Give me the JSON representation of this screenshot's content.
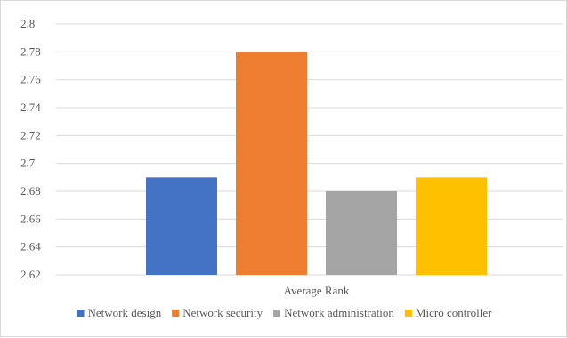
{
  "chart_data": {
    "type": "bar",
    "categories": [
      "Average Rank"
    ],
    "series": [
      {
        "name": "Network design",
        "values": [
          2.69
        ],
        "color": "#4472c4"
      },
      {
        "name": "Network security",
        "values": [
          2.78
        ],
        "color": "#ed7d31"
      },
      {
        "name": "Network administration",
        "values": [
          2.68
        ],
        "color": "#a5a5a5"
      },
      {
        "name": "Micro controller",
        "values": [
          2.69
        ],
        "color": "#ffc000"
      }
    ],
    "ylim": [
      2.62,
      2.8
    ],
    "yticks": [
      "2.62",
      "2.64",
      "2.66",
      "2.68",
      "2.7",
      "2.72",
      "2.74",
      "2.76",
      "2.78",
      "2.8"
    ],
    "grid": true,
    "legend_position": "bottom",
    "gridline_color": "#d9d9d9",
    "label_color": "#595959"
  }
}
